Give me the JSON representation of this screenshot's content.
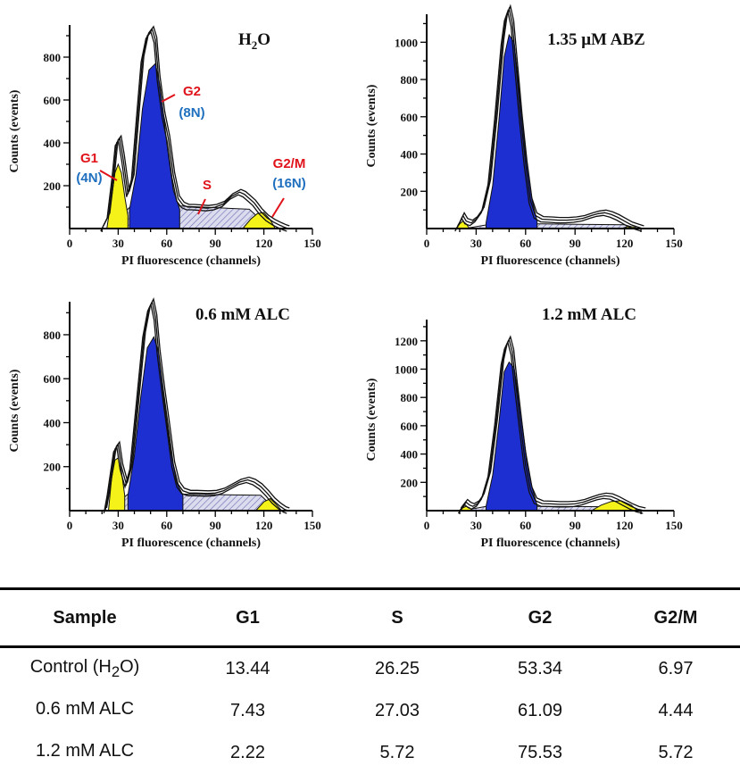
{
  "chart_data": [
    {
      "type": "area",
      "title": "H2O",
      "xlabel": "PI fluorescence (channels)",
      "ylabel": "Counts (events)",
      "xlim": [
        0,
        150
      ],
      "ylim": [
        0,
        950
      ],
      "xticks": [
        0,
        30,
        60,
        90,
        120,
        150
      ],
      "yticks": [
        200,
        400,
        600,
        800
      ],
      "series": [
        {
          "name": "histogram",
          "x": [
            20,
            24,
            27,
            29,
            31,
            33,
            36,
            39,
            42,
            45,
            48,
            51,
            53,
            55,
            58,
            61,
            64,
            67,
            70,
            73,
            76,
            80,
            85,
            90,
            95,
            100,
            105,
            108,
            111,
            114,
            118,
            122,
            126,
            130,
            133,
            135
          ],
          "y": [
            0,
            60,
            250,
            400,
            420,
            330,
            160,
            240,
            520,
            790,
            900,
            930,
            880,
            700,
            530,
            420,
            250,
            140,
            110,
            100,
            100,
            98,
            95,
            100,
            115,
            150,
            170,
            160,
            140,
            120,
            80,
            50,
            30,
            15,
            5,
            0
          ]
        },
        {
          "name": "G1",
          "x": [
            23,
            26,
            28,
            30,
            32,
            34,
            36
          ],
          "y": [
            0,
            150,
            260,
            300,
            260,
            150,
            60
          ]
        },
        {
          "name": "G2",
          "x": [
            37,
            41,
            45,
            49,
            53,
            56,
            60,
            64,
            68
          ],
          "y": [
            90,
            250,
            560,
            740,
            770,
            660,
            400,
            180,
            90
          ]
        },
        {
          "name": "S",
          "x": [
            23,
            38,
            68,
            111,
            124
          ],
          "y": [
            0,
            105,
            105,
            90,
            0
          ]
        },
        {
          "name": "G2/M",
          "x": [
            107,
            112,
            116,
            120,
            124,
            127
          ],
          "y": [
            0,
            45,
            70,
            75,
            40,
            0
          ]
        }
      ],
      "annotations": [
        {
          "label": "G1",
          "sub": "(4N)"
        },
        {
          "label": "G2",
          "sub": "(8N)"
        },
        {
          "label": "S",
          "sub": ""
        },
        {
          "label": "G2/M",
          "sub": "(16N)"
        }
      ]
    },
    {
      "type": "area",
      "title": "1.35 μM ABZ",
      "xlabel": "PI fluorescence (channels)",
      "ylabel": "Counts (events)",
      "xlim": [
        0,
        150
      ],
      "ylim": [
        0,
        1150
      ],
      "xticks": [
        0,
        30,
        60,
        90,
        120,
        150
      ],
      "yticks": [
        200,
        400,
        600,
        800,
        1000
      ],
      "series": [
        {
          "name": "histogram",
          "x": [
            18,
            20,
            22,
            24,
            27,
            30,
            34,
            38,
            42,
            46,
            48,
            50,
            52,
            54,
            57,
            60,
            63,
            66,
            70,
            75,
            80,
            85,
            90,
            95,
            100,
            104,
            108,
            112,
            116,
            120,
            124,
            128,
            131
          ],
          "y": [
            0,
            30,
            70,
            40,
            30,
            50,
            100,
            250,
            600,
            1000,
            1130,
            1180,
            1100,
            900,
            600,
            350,
            150,
            70,
            50,
            48,
            45,
            45,
            48,
            55,
            70,
            80,
            85,
            75,
            60,
            40,
            20,
            8,
            0
          ]
        },
        {
          "name": "G1",
          "x": [
            18,
            20,
            22,
            24,
            26
          ],
          "y": [
            0,
            25,
            40,
            25,
            0
          ]
        },
        {
          "name": "G2",
          "x": [
            36,
            40,
            44,
            47,
            50,
            53,
            56,
            60,
            64,
            67
          ],
          "y": [
            30,
            230,
            600,
            920,
            1040,
            1000,
            760,
            400,
            150,
            40
          ]
        },
        {
          "name": "S",
          "x": [
            23,
            40,
            70,
            120,
            128
          ],
          "y": [
            0,
            25,
            25,
            20,
            0
          ]
        },
        {
          "name": "G2/M",
          "x": [
            118,
            122,
            126,
            128
          ],
          "y": [
            0,
            10,
            8,
            0
          ]
        }
      ],
      "annotations": []
    },
    {
      "type": "area",
      "title": "0.6 mM ALC",
      "xlabel": "PI fluorescence (channels)",
      "ylabel": "Counts (events)",
      "xlim": [
        0,
        150
      ],
      "ylim": [
        0,
        950
      ],
      "xticks": [
        0,
        30,
        60,
        90,
        120,
        150
      ],
      "yticks": [
        200,
        400,
        600,
        800
      ],
      "series": [
        {
          "name": "histogram",
          "x": [
            22,
            24,
            26,
            28,
            30,
            32,
            35,
            38,
            42,
            46,
            49,
            51,
            53,
            55,
            58,
            61,
            64,
            67,
            70,
            74,
            78,
            85,
            90,
            95,
            100,
            105,
            110,
            114,
            118,
            122,
            126,
            130,
            133,
            135
          ],
          "y": [
            0,
            80,
            180,
            280,
            300,
            200,
            120,
            200,
            500,
            800,
            920,
            950,
            880,
            720,
            540,
            380,
            210,
            120,
            90,
            80,
            80,
            78,
            80,
            90,
            110,
            130,
            140,
            130,
            110,
            80,
            45,
            20,
            5,
            0
          ]
        },
        {
          "name": "G1",
          "x": [
            24,
            26,
            28,
            30,
            32,
            34
          ],
          "y": [
            0,
            150,
            230,
            240,
            180,
            70
          ]
        },
        {
          "name": "G2",
          "x": [
            36,
            40,
            44,
            48,
            52,
            55,
            58,
            62,
            66,
            70
          ],
          "y": [
            70,
            250,
            520,
            740,
            790,
            720,
            520,
            290,
            130,
            70
          ]
        },
        {
          "name": "S",
          "x": [
            24,
            36,
            70,
            118,
            128
          ],
          "y": [
            0,
            75,
            75,
            70,
            0
          ]
        },
        {
          "name": "G2/M",
          "x": [
            115,
            120,
            124,
            128,
            131
          ],
          "y": [
            0,
            40,
            55,
            25,
            0
          ]
        }
      ],
      "annotations": []
    },
    {
      "type": "area",
      "title": "1.2 mM ALC",
      "xlabel": "PI fluorescence (channels)",
      "ylabel": "Counts (events)",
      "xlim": [
        0,
        150
      ],
      "ylim": [
        0,
        1350
      ],
      "xticks": [
        0,
        30,
        60,
        90,
        120,
        150
      ],
      "yticks": [
        200,
        400,
        600,
        800,
        1000,
        1200
      ],
      "series": [
        {
          "name": "histogram",
          "x": [
            20,
            22,
            24,
            26,
            28,
            31,
            34,
            38,
            42,
            46,
            48,
            50,
            52,
            54,
            57,
            60,
            63,
            66,
            70,
            75,
            80,
            85,
            90,
            95,
            100,
            104,
            108,
            112,
            116,
            120,
            124,
            128,
            132
          ],
          "y": [
            0,
            30,
            60,
            40,
            30,
            50,
            100,
            260,
            620,
            1050,
            1160,
            1210,
            1120,
            900,
            600,
            320,
            150,
            70,
            50,
            48,
            45,
            45,
            48,
            60,
            80,
            95,
            105,
            100,
            80,
            55,
            30,
            10,
            0
          ]
        },
        {
          "name": "G1",
          "x": [
            20,
            22,
            24,
            26,
            28
          ],
          "y": [
            0,
            20,
            30,
            20,
            0
          ]
        },
        {
          "name": "G2",
          "x": [
            36,
            40,
            44,
            47,
            50,
            53,
            56,
            60,
            64,
            67
          ],
          "y": [
            30,
            250,
            640,
            980,
            1050,
            1010,
            780,
            420,
            160,
            40
          ]
        },
        {
          "name": "S",
          "x": [
            22,
            36,
            70,
            110,
            120
          ],
          "y": [
            0,
            30,
            30,
            28,
            0
          ]
        },
        {
          "name": "G2/M",
          "x": [
            100,
            106,
            112,
            118,
            124,
            128
          ],
          "y": [
            0,
            40,
            65,
            70,
            40,
            0
          ]
        }
      ],
      "annotations": []
    }
  ],
  "table": {
    "headers": [
      "Sample",
      "G1",
      "S",
      "G2",
      "G2/M"
    ],
    "rows": [
      {
        "sample": {
          "pre": "Control (H",
          "sub": "2",
          "post": "O)"
        },
        "g1": "13.44",
        "s": "26.25",
        "g2": "53.34",
        "g2m": "6.97"
      },
      {
        "sample": {
          "pre": "0.6 mM ALC",
          "sub": "",
          "post": ""
        },
        "g1": "7.43",
        "s": "27.03",
        "g2": "61.09",
        "g2m": "4.44"
      },
      {
        "sample": {
          "pre": "1.2 mM ALC",
          "sub": "",
          "post": ""
        },
        "g1": "2.22",
        "s": "5.72",
        "g2": "75.53",
        "g2m": "5.72"
      }
    ]
  },
  "colors": {
    "g1": "#f5f21a",
    "g2": "#1e2fd1",
    "s_fill": "#dcdcef",
    "s_hatch": "#6a6ab0",
    "outline": "#111111",
    "annotation_red": "#e0121a",
    "annotation_blue": "#1f6fbf"
  }
}
